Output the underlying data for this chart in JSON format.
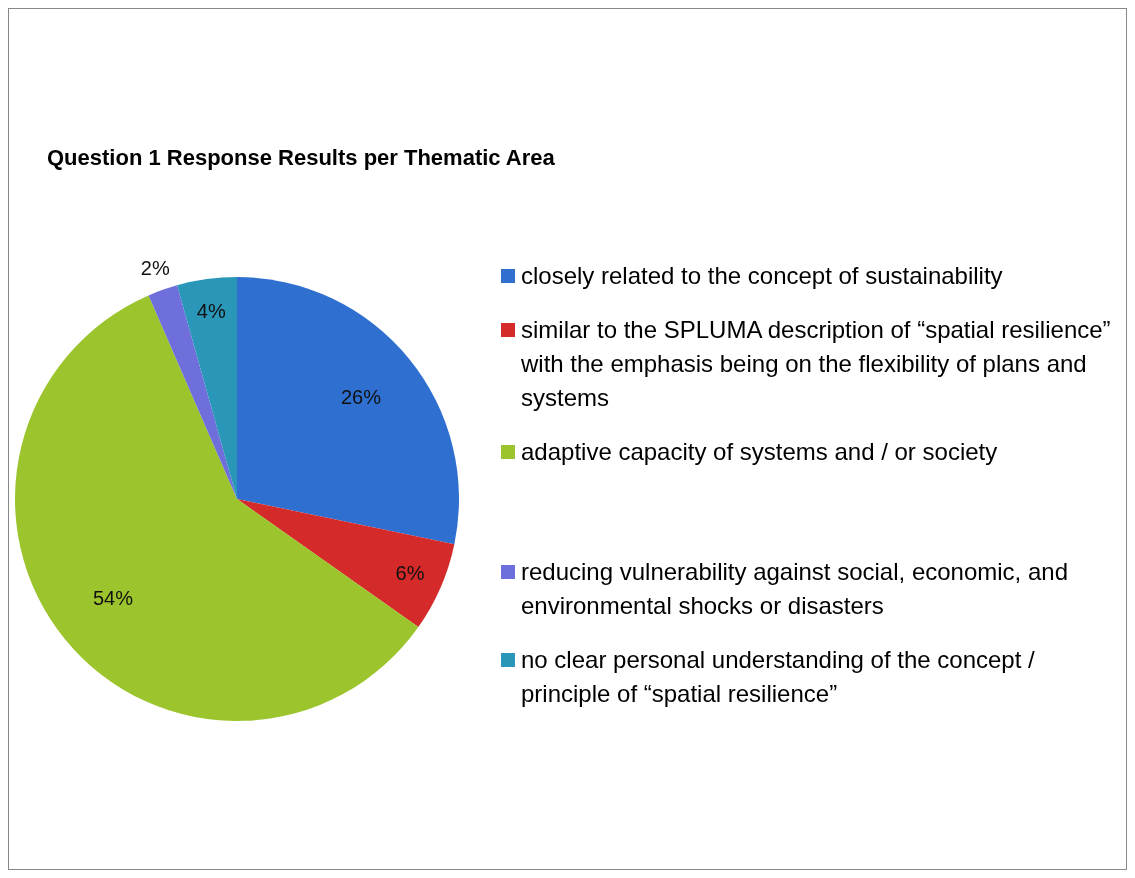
{
  "chart_data": {
    "type": "pie",
    "title": "Question 1 Response Results per Thematic Area",
    "categories": [
      "closely related to the concept of sustainability",
      "similar to the SPLUMA description of “spatial resilience” with the emphasis being on the flexibility of plans and systems",
      "adaptive capacity of systems and / or society",
      "reducing vulnerability against social, economic, and environmental shocks or disasters",
      "no clear personal understanding of the concept / principle of “spatial resilience”"
    ],
    "values": [
      26,
      6,
      54,
      2,
      4
    ],
    "colors": [
      "#2f6fd0",
      "#d42a2a",
      "#9cc42c",
      "#6f6fdc",
      "#2a96b8"
    ],
    "value_labels": [
      "26%",
      "6%",
      "54%",
      "2%",
      "4%"
    ],
    "legend": "right"
  }
}
